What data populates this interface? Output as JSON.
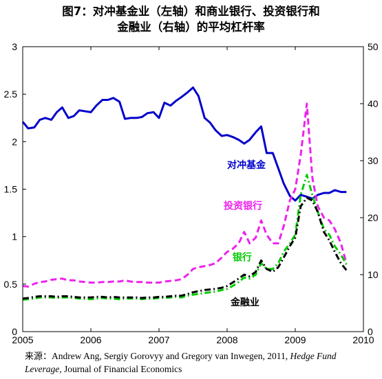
{
  "title_line1": "图7：对冲基金业（左轴）和商业银行、投资银行和",
  "title_line2": "金融业（右轴）的平均杠杆率",
  "source": {
    "label": "来源：",
    "authors": "Andrew Ang, Sergiy Gorovyy and Gregory van Inwegen, 2011,",
    "italic_title": "Hedge Fund Leverage,",
    "journal": "Journal of Financial Economics"
  },
  "chart_data": {
    "type": "line",
    "x_axis": {
      "min": 2005,
      "max": 2010,
      "ticks": [
        2005,
        2006,
        2007,
        2008,
        2009,
        2010
      ],
      "tick_labels": [
        "2005",
        "2006",
        "2007",
        "2008",
        "2009",
        "2010"
      ]
    },
    "y_left": {
      "min": 0,
      "max": 3,
      "ticks": [
        0,
        0.5,
        1,
        1.5,
        2,
        2.5,
        3
      ],
      "tick_labels": [
        "0",
        "0.5",
        "1",
        "1.5",
        "2",
        "2.5",
        "3"
      ]
    },
    "y_right": {
      "min": 0,
      "max": 50,
      "ticks": [
        0,
        10,
        20,
        30,
        40,
        50
      ],
      "tick_labels": [
        "0",
        "10",
        "20",
        "30",
        "40",
        "50"
      ]
    },
    "grid": false,
    "series": [
      {
        "name": "对冲基金",
        "axis": "left",
        "color": "#0000cc",
        "style": "solid",
        "label_at": [
          2008.0,
          1.72
        ],
        "x": [
          2005.0,
          2005.08,
          2005.17,
          2005.25,
          2005.33,
          2005.42,
          2005.5,
          2005.58,
          2005.67,
          2005.75,
          2005.83,
          2006.0,
          2006.08,
          2006.17,
          2006.25,
          2006.33,
          2006.42,
          2006.5,
          2006.58,
          2006.67,
          2006.75,
          2006.83,
          2006.92,
          2007.0,
          2007.08,
          2007.17,
          2007.25,
          2007.33,
          2007.42,
          2007.5,
          2007.58,
          2007.67,
          2007.75,
          2007.83,
          2007.92,
          2008.0,
          2008.08,
          2008.17,
          2008.25,
          2008.33,
          2008.42,
          2008.5,
          2008.58,
          2008.67,
          2008.75,
          2008.83,
          2008.92,
          2009.0,
          2009.08,
          2009.17,
          2009.25,
          2009.33,
          2009.42,
          2009.5,
          2009.58,
          2009.67,
          2009.75
        ],
        "y": [
          2.21,
          2.14,
          2.15,
          2.23,
          2.25,
          2.23,
          2.31,
          2.36,
          2.25,
          2.27,
          2.33,
          2.31,
          2.38,
          2.44,
          2.44,
          2.46,
          2.42,
          2.24,
          2.25,
          2.25,
          2.26,
          2.3,
          2.31,
          2.25,
          2.41,
          2.38,
          2.43,
          2.47,
          2.52,
          2.57,
          2.48,
          2.25,
          2.2,
          2.12,
          2.06,
          2.07,
          2.05,
          2.02,
          1.98,
          2.02,
          2.1,
          2.16,
          1.88,
          1.88,
          1.72,
          1.56,
          1.43,
          1.38,
          1.44,
          1.42,
          1.4,
          1.44,
          1.46,
          1.46,
          1.49,
          1.47,
          1.47
        ]
      },
      {
        "name": "投资银行",
        "axis": "right",
        "color": "#ee22ee",
        "style": "dash",
        "label_at": [
          2007.95,
          21.5
        ],
        "x": [
          2005.0,
          2005.08,
          2005.17,
          2005.25,
          2005.33,
          2005.42,
          2005.5,
          2005.58,
          2005.67,
          2005.75,
          2005.83,
          2006.0,
          2006.08,
          2006.17,
          2006.25,
          2006.33,
          2006.42,
          2006.5,
          2006.58,
          2006.67,
          2006.75,
          2006.83,
          2006.92,
          2007.0,
          2007.08,
          2007.17,
          2007.25,
          2007.33,
          2007.42,
          2007.5,
          2007.58,
          2007.67,
          2007.75,
          2007.83,
          2007.92,
          2008.0,
          2008.08,
          2008.17,
          2008.25,
          2008.33,
          2008.42,
          2008.5,
          2008.58,
          2008.67,
          2008.75,
          2008.83,
          2008.92,
          2009.0,
          2009.08,
          2009.17,
          2009.25,
          2009.33,
          2009.42,
          2009.5,
          2009.58,
          2009.67,
          2009.75
        ],
        "y": [
          8.0,
          7.9,
          8.4,
          8.7,
          8.8,
          9.1,
          9.2,
          9.3,
          9.0,
          9.0,
          8.8,
          8.6,
          8.6,
          8.7,
          8.7,
          8.8,
          8.8,
          9.0,
          8.8,
          8.7,
          8.7,
          8.6,
          8.6,
          8.6,
          8.8,
          8.9,
          9.0,
          9.2,
          10.0,
          11.0,
          11.3,
          11.5,
          11.7,
          12.0,
          13.0,
          14.0,
          14.5,
          15.5,
          17.5,
          15.5,
          16.5,
          19.5,
          17.0,
          15.5,
          15.5,
          18.5,
          23.0,
          25.0,
          31.0,
          40.0,
          27.0,
          22.0,
          20.0,
          19.5,
          18.0,
          15.5,
          12.0
        ]
      },
      {
        "name": "银行",
        "axis": "right",
        "color": "#00cc00",
        "style": "dashdot",
        "label_at": [
          2008.08,
          12.5
        ],
        "x": [
          2005.0,
          2005.08,
          2005.17,
          2005.25,
          2005.33,
          2005.42,
          2005.5,
          2005.58,
          2005.67,
          2005.75,
          2005.83,
          2006.0,
          2006.08,
          2006.17,
          2006.25,
          2006.33,
          2006.42,
          2006.5,
          2006.58,
          2006.67,
          2006.75,
          2006.83,
          2006.92,
          2007.0,
          2007.08,
          2007.17,
          2007.25,
          2007.33,
          2007.42,
          2007.5,
          2007.58,
          2007.67,
          2007.75,
          2007.83,
          2007.92,
          2008.0,
          2008.08,
          2008.17,
          2008.25,
          2008.33,
          2008.42,
          2008.5,
          2008.58,
          2008.67,
          2008.75,
          2008.83,
          2008.92,
          2009.0,
          2009.08,
          2009.17,
          2009.25,
          2009.33,
          2009.42,
          2009.5,
          2009.58,
          2009.67,
          2009.75
        ],
        "y": [
          5.6,
          5.7,
          5.8,
          6.0,
          6.0,
          6.0,
          5.9,
          6.0,
          6.0,
          5.9,
          5.8,
          5.7,
          5.8,
          5.9,
          5.8,
          5.8,
          5.7,
          5.8,
          5.8,
          5.8,
          5.7,
          5.8,
          5.8,
          5.9,
          5.9,
          6.0,
          6.1,
          6.0,
          6.3,
          6.5,
          6.6,
          6.8,
          6.9,
          7.0,
          7.3,
          7.5,
          8.0,
          8.7,
          9.5,
          9.3,
          10.0,
          12.0,
          11.0,
          11.0,
          12.0,
          14.0,
          15.5,
          17.0,
          24.0,
          27.5,
          24.0,
          21.0,
          18.0,
          17.0,
          15.0,
          13.5,
          11.8
        ]
      },
      {
        "name": "金融业",
        "axis": "right",
        "color": "#000000",
        "style": "dashdot",
        "label_at": [
          2008.05,
          4.6
        ],
        "x": [
          2005.0,
          2005.08,
          2005.17,
          2005.25,
          2005.33,
          2005.42,
          2005.5,
          2005.58,
          2005.67,
          2005.75,
          2005.83,
          2006.0,
          2006.08,
          2006.17,
          2006.25,
          2006.33,
          2006.42,
          2006.5,
          2006.58,
          2006.67,
          2006.75,
          2006.83,
          2006.92,
          2007.0,
          2007.08,
          2007.17,
          2007.25,
          2007.33,
          2007.42,
          2007.5,
          2007.58,
          2007.67,
          2007.75,
          2007.83,
          2007.92,
          2008.0,
          2008.08,
          2008.17,
          2008.25,
          2008.33,
          2008.42,
          2008.5,
          2008.58,
          2008.67,
          2008.75,
          2008.83,
          2008.92,
          2009.0,
          2009.08,
          2009.17,
          2009.25,
          2009.33,
          2009.42,
          2009.5,
          2009.58,
          2009.67,
          2009.75
        ],
        "y": [
          5.8,
          5.9,
          6.1,
          6.2,
          6.2,
          6.2,
          6.1,
          6.2,
          6.2,
          6.1,
          6.0,
          6.0,
          6.1,
          6.1,
          6.0,
          6.1,
          6.0,
          6.0,
          6.0,
          6.0,
          5.9,
          6.0,
          6.0,
          6.1,
          6.1,
          6.2,
          6.3,
          6.3,
          6.6,
          6.9,
          7.1,
          7.3,
          7.4,
          7.5,
          7.7,
          8.0,
          8.6,
          9.3,
          10.0,
          9.7,
          10.5,
          12.5,
          11.0,
          10.5,
          11.3,
          13.0,
          15.0,
          16.5,
          22.0,
          23.5,
          23.0,
          21.0,
          17.5,
          16.0,
          14.0,
          12.0,
          10.8
        ]
      }
    ]
  }
}
